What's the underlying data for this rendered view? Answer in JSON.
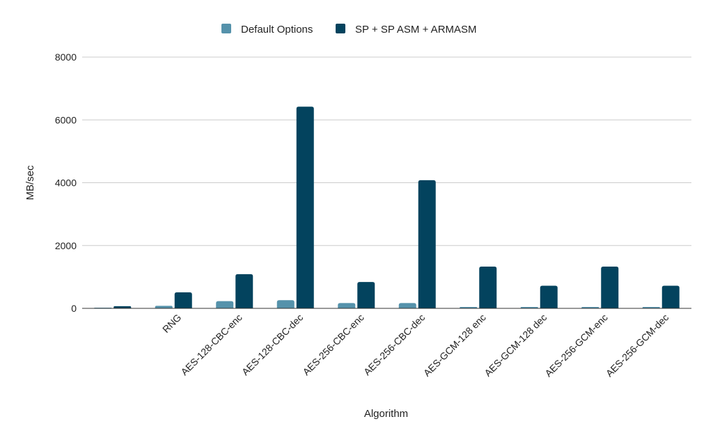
{
  "chart_data": {
    "type": "bar",
    "title": "",
    "xlabel": "Algorithm",
    "ylabel": "MB/sec",
    "ylim": [
      0,
      8000
    ],
    "yticks": [
      0,
      2000,
      4000,
      6000,
      8000
    ],
    "grid": true,
    "legend_position": "top-center",
    "categories": [
      "",
      "RNG",
      "AES-128-CBC-enc",
      "AES-128-CBC-dec",
      "AES-256-CBC-enc",
      "AES-256-CBC-dec",
      "AES-GCM-128 enc",
      "AES-GCM-128 dec",
      "AES-256-GCM-enc",
      "AES-256-GCM-dec"
    ],
    "series": [
      {
        "name": "Default Options",
        "color": "#5592ab",
        "values": [
          15,
          80,
          230,
          260,
          170,
          170,
          45,
          45,
          45,
          45
        ]
      },
      {
        "name": "SP + SP ASM + ARMASM",
        "color": "#03435e",
        "values": [
          70,
          510,
          1090,
          6420,
          840,
          4080,
          1330,
          720,
          1330,
          720
        ]
      }
    ]
  }
}
